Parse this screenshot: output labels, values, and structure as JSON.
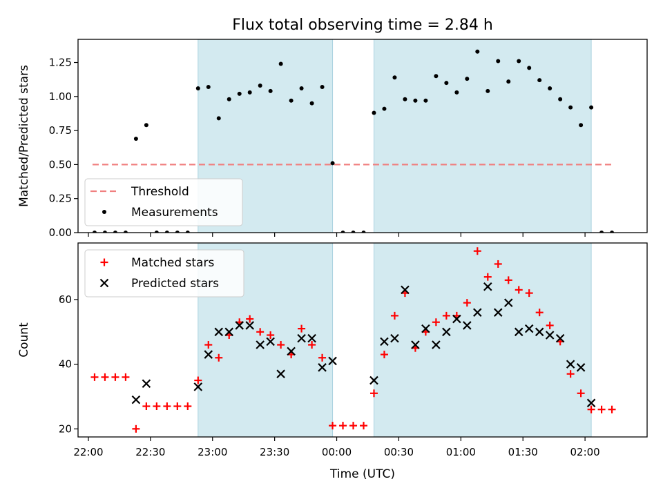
{
  "chart_data": [
    {
      "type": "scatter",
      "title": "Flux total observing time = 2.84 h",
      "xlabel": "",
      "ylabel": "Matched/Predicted stars",
      "xlim": [
        "21:55",
        "02:30"
      ],
      "ylim": [
        0,
        1.42
      ],
      "yticks": [
        "0.00",
        "0.25",
        "0.50",
        "0.75",
        "1.00",
        "1.25"
      ],
      "shaded_intervals": [
        [
          "22:53",
          "23:58"
        ],
        [
          "00:18",
          "02:03"
        ]
      ],
      "shade_color": "#d3eaf0",
      "threshold": {
        "name": "Threshold",
        "value": 0.5,
        "x_start": "22:02",
        "x_end": "02:13",
        "color": "#f08080"
      },
      "series": [
        {
          "name": "Measurements",
          "color": "#000000",
          "x": [
            "22:03",
            "22:08",
            "22:13",
            "22:18",
            "22:23",
            "22:28",
            "22:33",
            "22:38",
            "22:43",
            "22:48",
            "22:53",
            "22:58",
            "23:03",
            "23:08",
            "23:13",
            "23:18",
            "23:23",
            "23:28",
            "23:33",
            "23:38",
            "23:43",
            "23:48",
            "23:53",
            "23:58",
            "00:03",
            "00:08",
            "00:13",
            "00:18",
            "00:23",
            "00:28",
            "00:33",
            "00:38",
            "00:43",
            "00:48",
            "00:53",
            "00:58",
            "01:03",
            "01:08",
            "01:13",
            "01:18",
            "01:23",
            "01:28",
            "01:33",
            "01:38",
            "01:43",
            "01:48",
            "01:53",
            "01:58",
            "02:03",
            "02:08",
            "02:13"
          ],
          "y": [
            0,
            0,
            0,
            0,
            0.69,
            0.79,
            0,
            0,
            0,
            0,
            1.06,
            1.07,
            0.84,
            0.98,
            1.02,
            1.03,
            1.08,
            1.04,
            1.24,
            0.97,
            1.06,
            0.95,
            1.07,
            0.51,
            0,
            0,
            0,
            0.88,
            0.91,
            1.14,
            0.98,
            0.97,
            0.97,
            1.15,
            1.1,
            1.03,
            1.13,
            1.33,
            1.04,
            1.26,
            1.11,
            1.26,
            1.21,
            1.12,
            1.06,
            0.98,
            0.92,
            0.79,
            0.92,
            0,
            0
          ]
        }
      ],
      "legend": {
        "position": "lower-left",
        "entries": [
          "Threshold",
          "Measurements"
        ]
      }
    },
    {
      "type": "scatter",
      "title": "",
      "xlabel": "Time (UTC)",
      "ylabel": "Count",
      "xlim": [
        "21:55",
        "02:30"
      ],
      "ylim": [
        17.5,
        77.5
      ],
      "yticks": [
        "20",
        "40",
        "60"
      ],
      "xticks": [
        "22:00",
        "22:30",
        "23:00",
        "23:30",
        "00:00",
        "00:30",
        "01:00",
        "01:30",
        "02:00"
      ],
      "shaded_intervals": [
        [
          "22:53",
          "23:58"
        ],
        [
          "00:18",
          "02:03"
        ]
      ],
      "shade_color": "#d3eaf0",
      "series": [
        {
          "name": "Matched stars",
          "marker": "+",
          "color": "#ff0000",
          "x": [
            "22:03",
            "22:08",
            "22:13",
            "22:18",
            "22:23",
            "22:28",
            "22:33",
            "22:38",
            "22:43",
            "22:48",
            "22:53",
            "22:58",
            "23:03",
            "23:08",
            "23:13",
            "23:18",
            "23:23",
            "23:28",
            "23:33",
            "23:38",
            "23:43",
            "23:48",
            "23:53",
            "23:58",
            "00:03",
            "00:08",
            "00:13",
            "00:18",
            "00:23",
            "00:28",
            "00:33",
            "00:38",
            "00:43",
            "00:48",
            "00:53",
            "00:58",
            "01:03",
            "01:08",
            "01:13",
            "01:18",
            "01:23",
            "01:28",
            "01:33",
            "01:38",
            "01:43",
            "01:48",
            "01:53",
            "01:58",
            "02:03",
            "02:08",
            "02:13"
          ],
          "y": [
            36,
            36,
            36,
            36,
            20,
            27,
            27,
            27,
            27,
            27,
            35,
            46,
            42,
            49,
            53,
            54,
            50,
            49,
            46,
            43,
            51,
            46,
            42,
            21,
            21,
            21,
            21,
            31,
            43,
            55,
            62,
            45,
            50,
            53,
            55,
            55,
            59,
            75,
            67,
            71,
            66,
            63,
            62,
            56,
            52,
            47,
            37,
            31,
            26,
            26,
            26
          ]
        },
        {
          "name": "Predicted stars",
          "marker": "x",
          "color": "#000000",
          "x": [
            "22:23",
            "22:28",
            "22:53",
            "22:58",
            "23:03",
            "23:08",
            "23:13",
            "23:18",
            "23:23",
            "23:28",
            "23:33",
            "23:38",
            "23:43",
            "23:48",
            "23:53",
            "23:58",
            "00:18",
            "00:23",
            "00:28",
            "00:33",
            "00:38",
            "00:43",
            "00:48",
            "00:53",
            "00:58",
            "01:03",
            "01:08",
            "01:13",
            "01:18",
            "01:23",
            "01:28",
            "01:33",
            "01:38",
            "01:43",
            "01:48",
            "01:53",
            "01:58",
            "02:03"
          ],
          "y": [
            29,
            34,
            33,
            43,
            50,
            50,
            52,
            52,
            46,
            47,
            37,
            44,
            48,
            48,
            39,
            41,
            35,
            47,
            48,
            63,
            46,
            51,
            46,
            50,
            54,
            52,
            56,
            64,
            56,
            59,
            50,
            51,
            50,
            49,
            48,
            40,
            39,
            28
          ]
        }
      ],
      "legend": {
        "position": "upper-left",
        "entries": [
          "Matched stars",
          "Predicted stars"
        ]
      }
    }
  ]
}
